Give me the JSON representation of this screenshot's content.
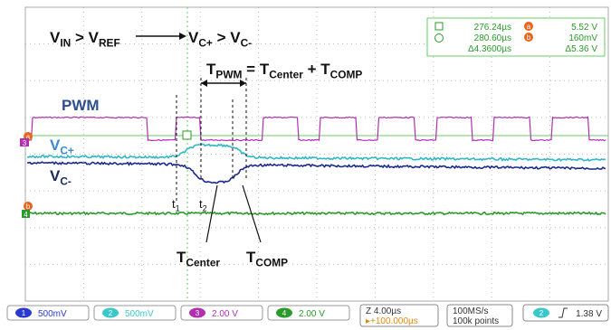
{
  "annotations": {
    "vin_vref": [
      "V",
      "IN",
      " > V",
      "REF"
    ],
    "vcp_vcm": [
      "V",
      "C+",
      " > V",
      "C-"
    ],
    "tpwm": [
      "T",
      "PWM",
      " = T",
      "Center",
      " + T",
      "COMP"
    ],
    "pwm": "PWM",
    "vcp": [
      "V",
      "C+"
    ],
    "vcm": [
      "V",
      "C-"
    ],
    "t1": [
      "t",
      "1"
    ],
    "t2": [
      "t",
      "2"
    ],
    "tcenter": [
      "T",
      "Center"
    ],
    "tcomp": [
      "T",
      "COMP"
    ]
  },
  "cursors": {
    "time_1": "276.24µs",
    "time_2": "280.60µs",
    "time_delta": "Δ4.3600µs",
    "marker_a": "a",
    "marker_b": "b",
    "volt_a": "5.52 V",
    "volt_b": "160mV",
    "volt_delta": "Δ5.36 V"
  },
  "channel_markers": {
    "ch3": "3",
    "ch4": "4",
    "a": "a",
    "b": "b"
  },
  "status_bar": {
    "channels": [
      {
        "number": "1",
        "scale": "500mV"
      },
      {
        "number": "2",
        "scale": "500mV"
      },
      {
        "number": "3",
        "scale": "2.00 V"
      },
      {
        "number": "4",
        "scale": "2.00 V"
      }
    ],
    "timebase": "Z 4.00µs",
    "delay": "▸+100.000µs",
    "sample_rate": "100MS/s",
    "record_length": "100k points",
    "trigger_source": "2",
    "trigger_level": "1.38 V"
  }
}
